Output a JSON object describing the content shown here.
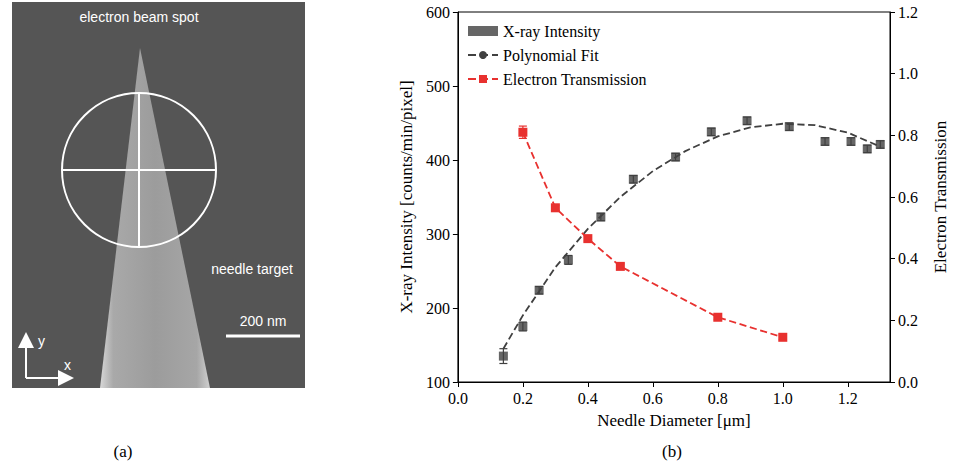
{
  "panel_labels": [
    "(a)",
    "(b)"
  ],
  "image_panel": {
    "beam_label": "electron beam spot",
    "target_label": "needle target",
    "scale_bar": "200 nm",
    "x_axis": "x",
    "y_axis": "y"
  },
  "chart_data": {
    "type": "scatter",
    "xlabel": "Needle Diameter [μm]",
    "ylabel": "X-ray Intensity [counts/min/pixel]",
    "y2label": "Electron Transmission",
    "xlim": [
      0,
      1.33
    ],
    "xticks": [
      {
        "value": 0,
        "label": "0.0"
      },
      {
        "value": 0.2,
        "label": "0.2"
      },
      {
        "value": 0.4,
        "label": "0.4"
      },
      {
        "value": 0.6,
        "label": "0.6"
      },
      {
        "value": 0.8,
        "label": "0.8"
      },
      {
        "value": 1.0,
        "label": "1.0"
      },
      {
        "value": 1.2,
        "label": "1.2"
      }
    ],
    "ylim": [
      100,
      600
    ],
    "yticks": [
      100,
      200,
      300,
      400,
      500,
      600
    ],
    "y2lim": [
      0,
      1.2
    ],
    "y2ticks": [
      {
        "value": 0,
        "label": "0.0"
      },
      {
        "value": 0.2,
        "label": "0.2"
      },
      {
        "value": 0.4,
        "label": "0.4"
      },
      {
        "value": 0.6,
        "label": "0.6"
      },
      {
        "value": 0.8,
        "label": "0.8"
      },
      {
        "value": 1.0,
        "label": "1.0"
      },
      {
        "value": 1.2,
        "label": "1.2"
      }
    ],
    "legend": "upper left",
    "grid": false,
    "series": [
      {
        "name": "X-ray Intensity",
        "type": "scatter",
        "marker": "square",
        "color": "#404040",
        "axis": "y",
        "x": [
          0.14,
          0.2,
          0.25,
          0.34,
          0.44,
          0.54,
          0.67,
          0.78,
          0.89,
          1.02,
          1.13,
          1.21,
          1.26,
          1.3
        ],
        "values": [
          135,
          175,
          224,
          265,
          323,
          374,
          404,
          438,
          453,
          445,
          425,
          425,
          415,
          421
        ],
        "errors": [
          10,
          6,
          5,
          6,
          5,
          5,
          5,
          5,
          5,
          5,
          5,
          5,
          5,
          5
        ]
      },
      {
        "name": "Polynomial Fit",
        "type": "line",
        "line_style": "dashed",
        "marker": "none",
        "color": "#404040",
        "axis": "y",
        "x": [
          0.14,
          0.2,
          0.3,
          0.4,
          0.5,
          0.6,
          0.7,
          0.8,
          0.9,
          1.0,
          1.1,
          1.2,
          1.3
        ],
        "values": [
          145,
          190,
          255,
          307,
          350,
          385,
          412,
          432,
          444,
          449,
          447,
          437,
          418
        ]
      },
      {
        "name": "Electron Transmission",
        "type": "line",
        "line_style": "dashed",
        "marker": "square",
        "color": "#e8312f",
        "axis": "y2",
        "x": [
          0.2,
          0.3,
          0.4,
          0.5,
          0.8,
          1.0
        ],
        "values": [
          0.81,
          0.565,
          0.465,
          0.375,
          0.21,
          0.145
        ],
        "errors": [
          0.02,
          0.008,
          0.008,
          0.008,
          0.008,
          0.008
        ]
      }
    ]
  }
}
